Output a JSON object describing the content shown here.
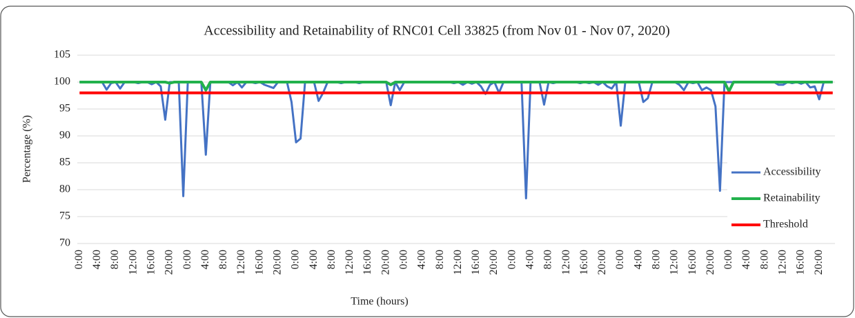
{
  "chart_data": {
    "type": "line",
    "title": "Accessibility and Retainability of RNC01 Cell 33825 (from Nov 01 - Nov 07, 2020)",
    "xlabel": "Time (hours)",
    "ylabel": "Percentage (%)",
    "categories": [
      "0:00",
      null,
      null,
      null,
      "4:00",
      null,
      null,
      null,
      "8:00",
      null,
      null,
      null,
      "12:00",
      null,
      null,
      null,
      "16:00",
      null,
      null,
      null,
      "20:00",
      null,
      null,
      null,
      "0:00",
      null,
      null,
      null,
      "4:00",
      null,
      null,
      null,
      "8:00",
      null,
      null,
      null,
      "12:00",
      null,
      null,
      null,
      "16:00",
      null,
      null,
      null,
      "20:00",
      null,
      null,
      null,
      "0:00",
      null,
      null,
      null,
      "4:00",
      null,
      null,
      null,
      "8:00",
      null,
      null,
      null,
      "12:00",
      null,
      null,
      null,
      "16:00",
      null,
      null,
      null,
      "20:00",
      null,
      null,
      null,
      "0:00",
      null,
      null,
      null,
      "4:00",
      null,
      null,
      null,
      "8:00",
      null,
      null,
      null,
      "12:00",
      null,
      null,
      null,
      "16:00",
      null,
      null,
      null,
      "20:00",
      null,
      null,
      null,
      "0:00",
      null,
      null,
      null,
      "4:00",
      null,
      null,
      null,
      "8:00",
      null,
      null,
      null,
      "12:00",
      null,
      null,
      null,
      "16:00",
      null,
      null,
      null,
      "20:00",
      null,
      null,
      null,
      "0:00",
      null,
      null,
      null,
      "4:00",
      null,
      null,
      null,
      "8:00",
      null,
      null,
      null,
      "12:00",
      null,
      null,
      null,
      "16:00",
      null,
      null,
      null,
      "20:00",
      null,
      null,
      null,
      "0:00",
      null,
      null,
      null,
      "4:00",
      null,
      null,
      null,
      "8:00",
      null,
      null,
      null,
      "12:00",
      null,
      null,
      null,
      "16:00",
      null,
      null,
      null,
      "20:00",
      null,
      null,
      null
    ],
    "series": [
      {
        "name": "Accessibility",
        "color": "#4472c4",
        "width": 3,
        "values": [
          100,
          100,
          100,
          100,
          100,
          100,
          98.6,
          99.8,
          100,
          98.8,
          100,
          100,
          100,
          99.8,
          100,
          100,
          99.6,
          100,
          99.2,
          93,
          100,
          100,
          100,
          78.8,
          100,
          100,
          100,
          100,
          86.5,
          100,
          100,
          100,
          100,
          100,
          99.4,
          100,
          99,
          100,
          100,
          99.8,
          100,
          99.5,
          99.2,
          98.9,
          100,
          100,
          100,
          96.3,
          88.8,
          89.5,
          100,
          100,
          100,
          96.5,
          98,
          100,
          100,
          100,
          99.8,
          100,
          100,
          100,
          99.8,
          100,
          100,
          100,
          100,
          100,
          100,
          95.7,
          100,
          98.5,
          100,
          100,
          100,
          100,
          100,
          100,
          100,
          100,
          100,
          100,
          100,
          99.8,
          100,
          99.5,
          100,
          99.7,
          100,
          99.2,
          97.8,
          99.5,
          100,
          98,
          100,
          100,
          100,
          100,
          100,
          78.4,
          100,
          100,
          100,
          95.8,
          100,
          99.8,
          100,
          100,
          100,
          100,
          100,
          99.8,
          100,
          99.8,
          100,
          99.5,
          100,
          99.2,
          98.8,
          100,
          91.9,
          100,
          100,
          100,
          100,
          96.3,
          97,
          100,
          100,
          100,
          100,
          100,
          100,
          99.5,
          98.5,
          100,
          99.8,
          100,
          98.5,
          99,
          98.5,
          95.5,
          79.8,
          100,
          100,
          100,
          100,
          100,
          100,
          100,
          100,
          100,
          100,
          100,
          100,
          99.5,
          99.5,
          100,
          99.8,
          100,
          99.7,
          100,
          99,
          99.2,
          96.8,
          100,
          100,
          100
        ]
      },
      {
        "name": "Retainability",
        "color": "#22b14c",
        "width": 4,
        "values": [
          100,
          100,
          100,
          100,
          100,
          100,
          100,
          100,
          100,
          100,
          100,
          100,
          100,
          100,
          100,
          100,
          100,
          100,
          100,
          100,
          99.8,
          100,
          100,
          100,
          100,
          100,
          100,
          100,
          98.5,
          100,
          100,
          100,
          100,
          100,
          100,
          100,
          100,
          100,
          100,
          100,
          100,
          100,
          100,
          100,
          100,
          100,
          100,
          100,
          100,
          100,
          100,
          100,
          100,
          100,
          100,
          100,
          100,
          100,
          100,
          100,
          100,
          100,
          100,
          100,
          100,
          100,
          100,
          100,
          100,
          99.5,
          100,
          100,
          100,
          100,
          100,
          100,
          100,
          100,
          100,
          100,
          100,
          100,
          100,
          100,
          100,
          100,
          100,
          100,
          100,
          100,
          100,
          100,
          100,
          100,
          100,
          100,
          100,
          100,
          100,
          100,
          100,
          100,
          100,
          100,
          100,
          100,
          100,
          100,
          100,
          100,
          100,
          100,
          100,
          100,
          100,
          100,
          100,
          100,
          100,
          100,
          100,
          100,
          100,
          100,
          100,
          100,
          100,
          100,
          100,
          100,
          100,
          100,
          100,
          100,
          100,
          100,
          100,
          100,
          100,
          100,
          100,
          100,
          100,
          100,
          98.3,
          100,
          100,
          100,
          100,
          100,
          100,
          100,
          100,
          100,
          100,
          100,
          100,
          100,
          100,
          100,
          100,
          100,
          100,
          100,
          100,
          100,
          100,
          100
        ]
      },
      {
        "name": "Threshold",
        "color": "#ff0000",
        "width": 4,
        "values": [
          98,
          98,
          98,
          98,
          98,
          98,
          98,
          98,
          98,
          98,
          98,
          98,
          98,
          98,
          98,
          98,
          98,
          98,
          98,
          98,
          98,
          98,
          98,
          98,
          98,
          98,
          98,
          98,
          98,
          98,
          98,
          98,
          98,
          98,
          98,
          98,
          98,
          98,
          98,
          98,
          98,
          98,
          98,
          98,
          98,
          98,
          98,
          98,
          98,
          98,
          98,
          98,
          98,
          98,
          98,
          98,
          98,
          98,
          98,
          98,
          98,
          98,
          98,
          98,
          98,
          98,
          98,
          98,
          98,
          98,
          98,
          98,
          98,
          98,
          98,
          98,
          98,
          98,
          98,
          98,
          98,
          98,
          98,
          98,
          98,
          98,
          98,
          98,
          98,
          98,
          98,
          98,
          98,
          98,
          98,
          98,
          98,
          98,
          98,
          98,
          98,
          98,
          98,
          98,
          98,
          98,
          98,
          98,
          98,
          98,
          98,
          98,
          98,
          98,
          98,
          98,
          98,
          98,
          98,
          98,
          98,
          98,
          98,
          98,
          98,
          98,
          98,
          98,
          98,
          98,
          98,
          98,
          98,
          98,
          98,
          98,
          98,
          98,
          98,
          98,
          98,
          98,
          98,
          98,
          98,
          98,
          98,
          98,
          98,
          98,
          98,
          98,
          98,
          98,
          98,
          98,
          98,
          98,
          98,
          98,
          98,
          98,
          98,
          98,
          98,
          98,
          98,
          98
        ]
      }
    ],
    "ylim": [
      70,
      105
    ],
    "yticks": [
      70,
      75,
      80,
      85,
      90,
      95,
      100,
      105
    ],
    "grid": true,
    "legend": "right"
  }
}
